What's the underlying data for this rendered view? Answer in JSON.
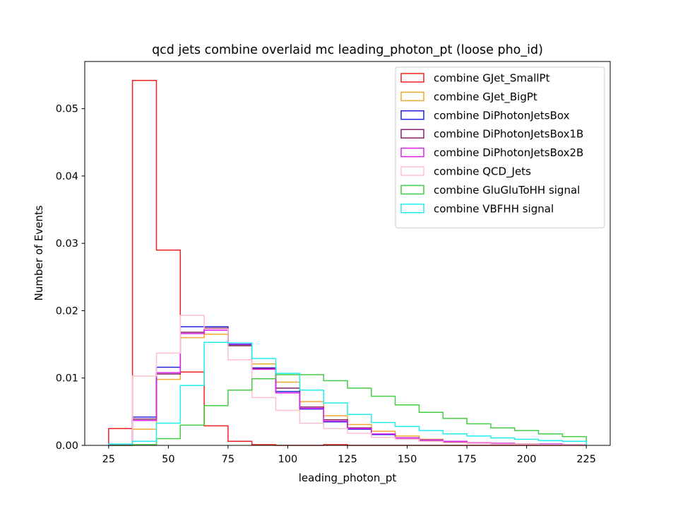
{
  "chart_data": {
    "type": "histogram-step",
    "title": "qcd jets combine overlaid mc leading_photon_pt (loose pho_id)",
    "xlabel": "leading_photon_pt",
    "ylabel": "Number of Events",
    "xlim": [
      15,
      235
    ],
    "ylim": [
      0,
      0.057
    ],
    "xticks": [
      25,
      50,
      75,
      100,
      125,
      150,
      175,
      200,
      225
    ],
    "xtick_labels": [
      "25",
      "50",
      "75",
      "100",
      "125",
      "150",
      "175",
      "200",
      "225"
    ],
    "yticks": [
      0,
      0.01,
      0.02,
      0.03,
      0.04,
      0.05
    ],
    "ytick_labels": [
      "0.00",
      "0.01",
      "0.02",
      "0.03",
      "0.04",
      "0.05"
    ],
    "bin_edges": [
      25,
      35,
      45,
      55,
      65,
      75,
      85,
      95,
      105,
      115,
      125,
      135,
      145,
      155,
      165,
      175,
      185,
      195,
      205,
      215,
      225
    ],
    "legend_position": "top-right",
    "grid": false,
    "series": [
      {
        "name": "combine GJet_SmallPt",
        "color": "#ee2222",
        "values": [
          0.0025,
          0.0542,
          0.029,
          0.0109,
          0.0029,
          0.0006,
          0.0001,
          0.0,
          0.0,
          0.0001,
          0.0,
          0.0,
          0.0,
          0.0,
          0.0,
          0.0,
          0.0,
          0.0,
          0.0,
          0.0
        ]
      },
      {
        "name": "combine GJet_BigPt",
        "color": "#f0a830",
        "values": [
          0.0,
          0.0024,
          0.0098,
          0.016,
          0.0165,
          0.0148,
          0.0121,
          0.0094,
          0.0065,
          0.0044,
          0.0031,
          0.0021,
          0.0014,
          0.0009,
          0.0006,
          0.0004,
          0.0003,
          0.0002,
          0.0002,
          0.0001
        ]
      },
      {
        "name": "combine DiPhotonJetsBox",
        "color": "#2222dd",
        "values": [
          0.0001,
          0.0042,
          0.0116,
          0.0176,
          0.0176,
          0.015,
          0.0115,
          0.008,
          0.0054,
          0.0035,
          0.0024,
          0.0016,
          0.0011,
          0.0008,
          0.0005,
          0.0004,
          0.0003,
          0.0002,
          0.0002,
          0.0001
        ]
      },
      {
        "name": "combine DiPhotonJetsBox1B",
        "color": "#882266",
        "values": [
          0.0001,
          0.0039,
          0.0106,
          0.0168,
          0.0174,
          0.0148,
          0.0114,
          0.0085,
          0.0057,
          0.0038,
          0.0026,
          0.0017,
          0.0011,
          0.0007,
          0.0005,
          0.0003,
          0.0002,
          0.0002,
          0.0001,
          0.0001
        ]
      },
      {
        "name": "combine DiPhotonJetsBox2B",
        "color": "#dd22ee",
        "values": [
          0.0001,
          0.0037,
          0.0108,
          0.0166,
          0.0171,
          0.0151,
          0.0113,
          0.0078,
          0.0055,
          0.0036,
          0.0025,
          0.0017,
          0.0011,
          0.0008,
          0.0006,
          0.0004,
          0.0003,
          0.0002,
          0.0002,
          0.0001
        ]
      },
      {
        "name": "combine QCD_Jets",
        "color": "#ffc0cb",
        "values": [
          0.0,
          0.0103,
          0.0137,
          0.0193,
          0.0173,
          0.0127,
          0.0071,
          0.0052,
          0.0033,
          0.0025,
          0.0018,
          0.0012,
          0.0009,
          0.0006,
          0.0004,
          0.0003,
          0.0002,
          0.0002,
          0.0001,
          0.0001
        ]
      },
      {
        "name": "combine GluGluToHH signal",
        "color": "#44cc44",
        "values": [
          0.0,
          0.0001,
          0.001,
          0.003,
          0.0059,
          0.0082,
          0.0099,
          0.0105,
          0.0105,
          0.0096,
          0.0085,
          0.0073,
          0.006,
          0.0049,
          0.004,
          0.0032,
          0.0026,
          0.0022,
          0.0017,
          0.0013
        ]
      },
      {
        "name": "combine VBFHH signal",
        "color": "#22eeee",
        "values": [
          0.0002,
          0.0006,
          0.0033,
          0.0089,
          0.0153,
          0.0152,
          0.0129,
          0.0107,
          0.0082,
          0.0063,
          0.0046,
          0.0034,
          0.0028,
          0.0022,
          0.0017,
          0.0014,
          0.0011,
          0.0009,
          0.0007,
          0.0006
        ]
      }
    ]
  }
}
